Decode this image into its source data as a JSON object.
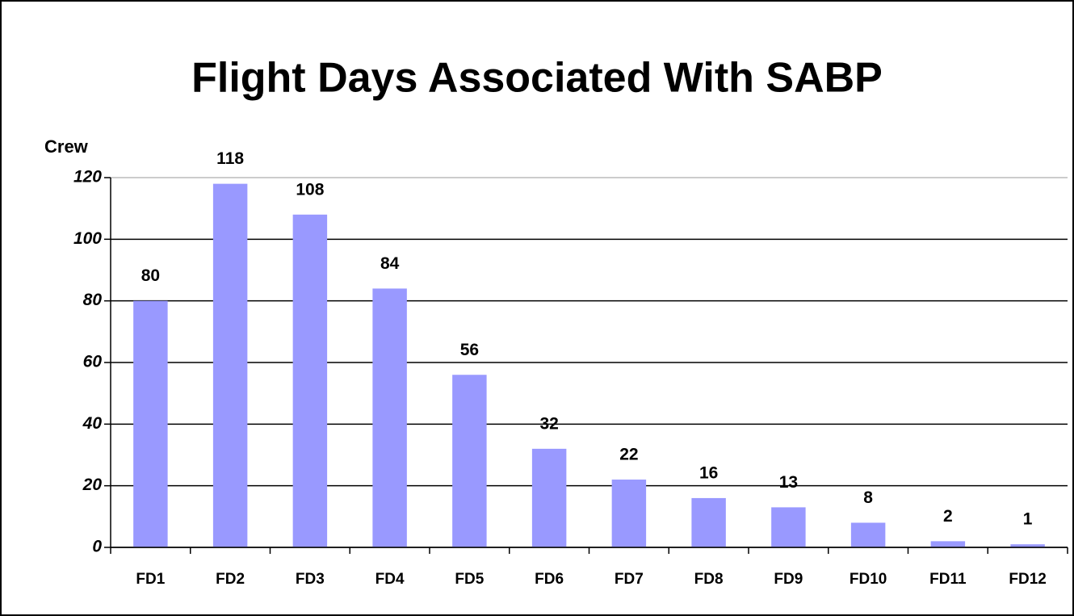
{
  "chart_data": {
    "type": "bar",
    "title": "Flight Days Associated With SABP",
    "y_label": "Crew",
    "categories": [
      "FD1",
      "FD2",
      "FD3",
      "FD4",
      "FD5",
      "FD6",
      "FD7",
      "FD8",
      "FD9",
      "FD10",
      "FD11",
      "FD12"
    ],
    "values": [
      80,
      118,
      108,
      84,
      56,
      32,
      22,
      16,
      13,
      8,
      2,
      1
    ],
    "color": "#9999ff",
    "ylim": [
      0,
      120
    ],
    "yticks": [
      0,
      20,
      40,
      60,
      80,
      100,
      120
    ],
    "grid": true
  }
}
